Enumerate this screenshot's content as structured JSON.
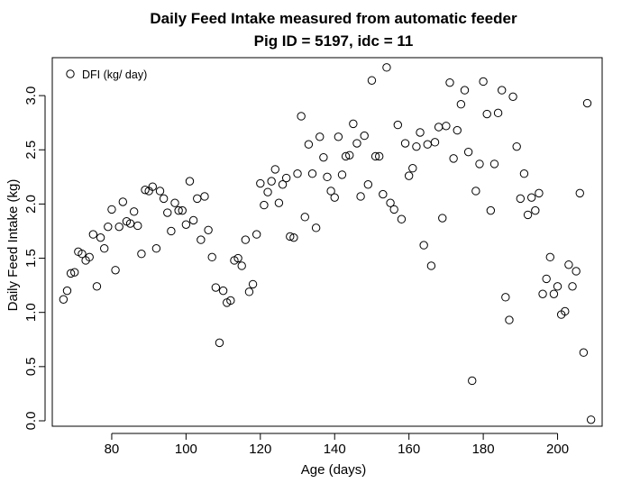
{
  "chart_data": {
    "type": "scatter",
    "title": "Daily Feed Intake measured from automatic feeder",
    "subtitle": "Pig ID = 5197, idc = 11",
    "xlabel": "Age (days)",
    "ylabel": "Daily Feed Intake (kg)",
    "xlim": [
      64,
      212
    ],
    "ylim": [
      -0.05,
      3.35
    ],
    "xticks": [
      "80",
      "100",
      "120",
      "140",
      "160",
      "180",
      "200"
    ],
    "yticks": [
      "0.0",
      "0.5",
      "1.0",
      "1.5",
      "2.0",
      "2.5",
      "3.0"
    ],
    "grid": false,
    "legend": {
      "position": "top-left",
      "label": "DFI (kg/ day)"
    },
    "series": [
      {
        "name": "DFI (kg/ day)",
        "x": [
          67,
          68,
          69,
          70,
          71,
          72,
          73,
          74,
          75,
          76,
          77,
          78,
          79,
          80,
          81,
          82,
          83,
          84,
          85,
          86,
          87,
          88,
          89,
          90,
          91,
          92,
          93,
          94,
          95,
          96,
          97,
          98,
          99,
          100,
          101,
          102,
          103,
          104,
          105,
          106,
          107,
          108,
          109,
          110,
          111,
          112,
          113,
          114,
          115,
          116,
          117,
          118,
          119,
          120,
          121,
          122,
          123,
          124,
          125,
          126,
          127,
          128,
          129,
          130,
          131,
          132,
          133,
          134,
          135,
          136,
          137,
          138,
          139,
          140,
          141,
          142,
          143,
          144,
          145,
          146,
          147,
          148,
          149,
          150,
          151,
          152,
          153,
          154,
          155,
          156,
          157,
          158,
          159,
          160,
          161,
          162,
          163,
          164,
          165,
          166,
          167,
          168,
          169,
          170,
          171,
          172,
          173,
          174,
          175,
          176,
          177,
          178,
          179,
          180,
          181,
          182,
          183,
          184,
          185,
          186,
          187,
          188,
          189,
          190,
          191,
          192,
          193,
          194,
          195,
          196,
          197,
          198,
          199,
          200,
          201,
          202,
          203,
          204,
          205,
          206,
          207,
          208,
          209
        ],
        "y": [
          1.12,
          1.2,
          1.36,
          1.37,
          1.56,
          1.54,
          1.48,
          1.51,
          1.72,
          1.24,
          1.69,
          1.59,
          1.79,
          1.95,
          1.39,
          1.79,
          2.02,
          1.84,
          1.82,
          1.93,
          1.8,
          1.54,
          2.13,
          2.12,
          2.16,
          1.59,
          2.12,
          2.05,
          1.92,
          1.75,
          2.01,
          1.94,
          1.94,
          1.81,
          2.21,
          1.85,
          2.05,
          1.67,
          2.07,
          1.76,
          1.51,
          1.23,
          0.72,
          1.2,
          1.09,
          1.11,
          1.48,
          1.5,
          1.43,
          1.67,
          1.19,
          1.26,
          1.72,
          2.19,
          1.99,
          2.11,
          2.21,
          2.32,
          2.01,
          2.18,
          2.24,
          1.7,
          1.69,
          2.28,
          2.81,
          1.88,
          2.55,
          2.28,
          1.78,
          2.62,
          2.43,
          2.25,
          2.12,
          2.06,
          2.62,
          2.27,
          2.44,
          2.45,
          2.74,
          2.56,
          2.07,
          2.63,
          2.18,
          3.14,
          2.44,
          2.44,
          2.09,
          3.26,
          2.01,
          1.95,
          2.73,
          1.86,
          2.56,
          2.26,
          2.33,
          2.53,
          2.66,
          1.62,
          2.55,
          1.43,
          2.57,
          2.71,
          1.87,
          2.72,
          3.12,
          2.42,
          2.68,
          2.92,
          3.05,
          2.48,
          0.37,
          2.12,
          2.37,
          3.13,
          2.83,
          1.94,
          2.37,
          2.84,
          3.05,
          1.14,
          0.93,
          2.99,
          2.53,
          2.05,
          2.28,
          1.9,
          2.06,
          1.94,
          2.1,
          1.17,
          1.31,
          1.51,
          1.17,
          1.24,
          0.98,
          1.01,
          1.44,
          1.24,
          1.38,
          2.1,
          0.63,
          2.93,
          0.01
        ]
      }
    ]
  }
}
